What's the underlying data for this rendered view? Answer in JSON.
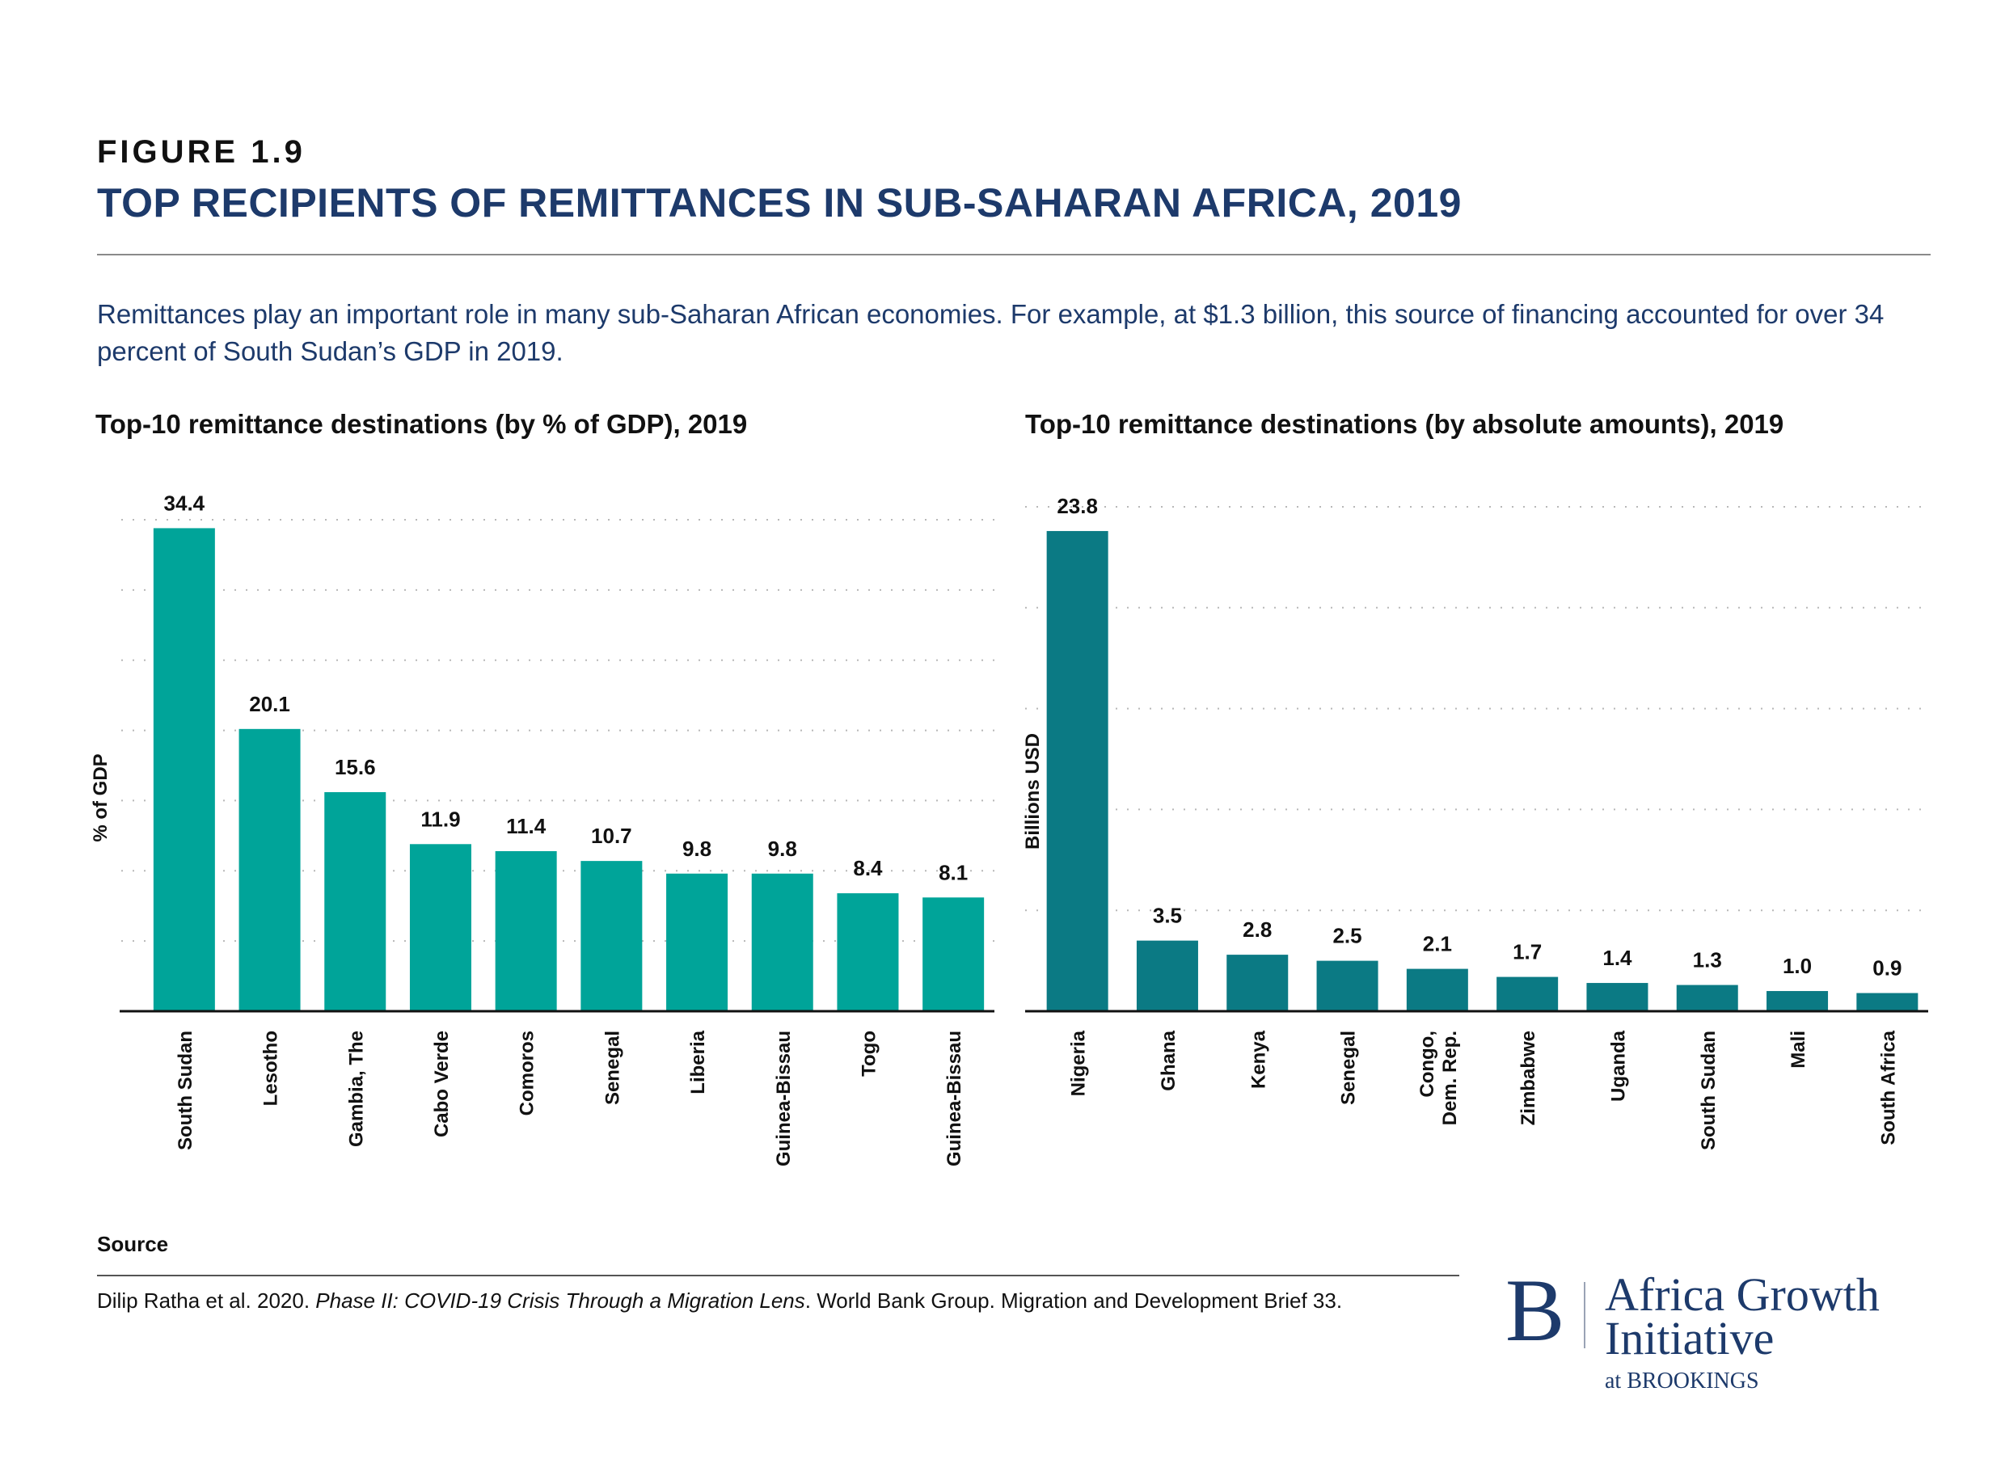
{
  "figure": {
    "label": "FIGURE 1.9",
    "title": "TOP RECIPIENTS OF REMITTANCES IN SUB-SAHARAN AFRICA, 2019",
    "intro": "Remittances play an important role in many sub-Saharan African economies. For example, at $1.3 billion, this source of financing accounted for over 34 percent of South Sudan’s GDP in 2019."
  },
  "colors": {
    "title": "#1d3a6b",
    "bar_left": "#00a499",
    "bar_right": "#0b7a84"
  },
  "chart_data": [
    {
      "type": "bar",
      "title": "Top-10 remittance destinations (by % of GDP), 2019",
      "xlabel": "",
      "ylabel": "% of GDP",
      "ylim": [
        0,
        35
      ],
      "grid": true,
      "gridlines": [
        5,
        10,
        15,
        20,
        25,
        30,
        35
      ],
      "y_tick_labels_shown": false,
      "categories": [
        "South Sudan",
        "Lesotho",
        "Gambia, The",
        "Cabo Verde",
        "Comoros",
        "Senegal",
        "Liberia",
        "Guinea-Bissau",
        "Togo",
        "Guinea-Bissau"
      ],
      "values": [
        34.4,
        20.1,
        15.6,
        11.9,
        11.4,
        10.7,
        9.8,
        9.8,
        8.4,
        8.1
      ],
      "data_labels": [
        "34.4",
        "20.1",
        "15.6",
        "11.9",
        "11.4",
        "10.7",
        "9.8",
        "9.8",
        "8.4",
        "8.1"
      ]
    },
    {
      "type": "bar",
      "title": "Top-10 remittance destinations (by absolute amounts), 2019",
      "xlabel": "",
      "ylabel": "Billions USD",
      "ylim": [
        0,
        25
      ],
      "grid": true,
      "gridlines": [
        5,
        10,
        15,
        20,
        25
      ],
      "y_tick_labels_shown": false,
      "categories": [
        "Nigeria",
        "Ghana",
        "Kenya",
        "Senegal",
        "Congo,\nDem. Rep.",
        "Zimbabwe",
        "Uganda",
        "South Sudan",
        "Mali",
        "South Africa"
      ],
      "values": [
        23.8,
        3.5,
        2.8,
        2.5,
        2.1,
        1.7,
        1.4,
        1.3,
        1.0,
        0.9
      ],
      "data_labels": [
        "23.8",
        "3.5",
        "2.8",
        "2.5",
        "2.1",
        "1.7",
        "1.4",
        "1.3",
        "1.0",
        "0.9"
      ]
    }
  ],
  "source": {
    "label": "Source",
    "text_before": "Dilip Ratha et al. 2020. ",
    "text_italic": "Phase II: COVID-19 Crisis Through a Migration Lens",
    "text_after": ". World Bank Group. Migration and Development Brief 33."
  },
  "logo": {
    "mark": "B",
    "line1": "Africa Growth",
    "line2": "Initiative",
    "line3": "at BROOKINGS"
  }
}
